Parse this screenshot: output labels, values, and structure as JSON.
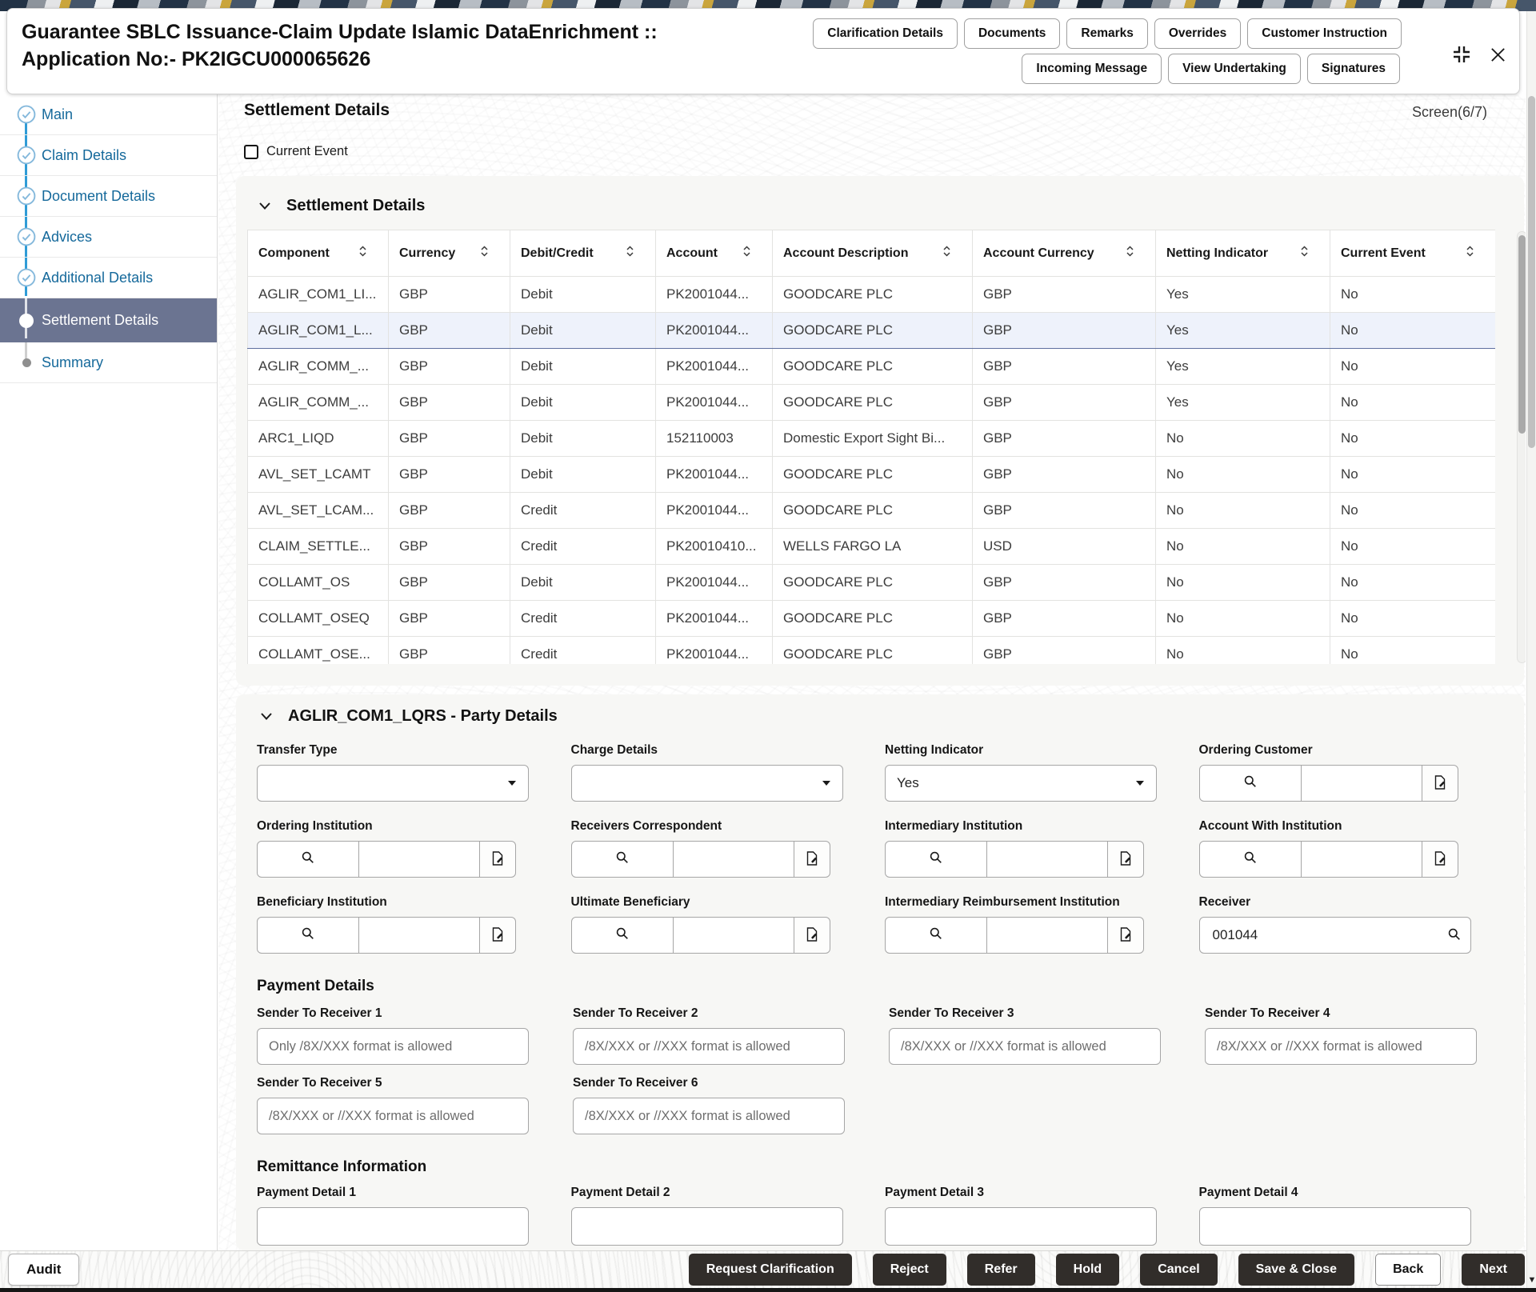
{
  "header": {
    "title_line1": "Guarantee SBLC Issuance-Claim Update Islamic DataEnrichment ::",
    "title_line2": "Application No:- PK2IGCU000065626",
    "buttons_row1": [
      "Clarification Details",
      "Documents",
      "Remarks",
      "Overrides",
      "Customer Instruction"
    ],
    "buttons_row2": [
      "Incoming Message",
      "View Undertaking",
      "Signatures"
    ]
  },
  "sidebar": {
    "items": [
      {
        "label": "Main",
        "state": "done"
      },
      {
        "label": "Claim Details",
        "state": "done"
      },
      {
        "label": "Document Details",
        "state": "done"
      },
      {
        "label": "Advices",
        "state": "done"
      },
      {
        "label": "Additional Details",
        "state": "done"
      },
      {
        "label": "Settlement Details",
        "state": "active"
      },
      {
        "label": "Summary",
        "state": "todo"
      }
    ]
  },
  "page": {
    "title": "Settlement Details",
    "screen_indicator": "Screen(6/7)",
    "current_event_label": "Current Event"
  },
  "settlement_table": {
    "section_title": "Settlement Details",
    "columns": [
      "Component",
      "Currency",
      "Debit/Credit",
      "Account",
      "Account Description",
      "Account Currency",
      "Netting Indicator",
      "Current Event"
    ],
    "rows": [
      {
        "selected": false,
        "cells": [
          "AGLIR_COM1_LI...",
          "GBP",
          "Debit",
          "PK2001044...",
          "GOODCARE PLC",
          "GBP",
          "Yes",
          "No"
        ]
      },
      {
        "selected": true,
        "cells": [
          "AGLIR_COM1_L...",
          "GBP",
          "Debit",
          "PK2001044...",
          "GOODCARE PLC",
          "GBP",
          "Yes",
          "No"
        ]
      },
      {
        "selected": false,
        "cells": [
          "AGLIR_COMM_...",
          "GBP",
          "Debit",
          "PK2001044...",
          "GOODCARE PLC",
          "GBP",
          "Yes",
          "No"
        ]
      },
      {
        "selected": false,
        "cells": [
          "AGLIR_COMM_...",
          "GBP",
          "Debit",
          "PK2001044...",
          "GOODCARE PLC",
          "GBP",
          "Yes",
          "No"
        ]
      },
      {
        "selected": false,
        "cells": [
          "ARC1_LIQD",
          "GBP",
          "Debit",
          "152110003",
          "Domestic Export Sight Bi...",
          "GBP",
          "No",
          "No"
        ]
      },
      {
        "selected": false,
        "cells": [
          "AVL_SET_LCAMT",
          "GBP",
          "Debit",
          "PK2001044...",
          "GOODCARE PLC",
          "GBP",
          "No",
          "No"
        ]
      },
      {
        "selected": false,
        "cells": [
          "AVL_SET_LCAM...",
          "GBP",
          "Credit",
          "PK2001044...",
          "GOODCARE PLC",
          "GBP",
          "No",
          "No"
        ]
      },
      {
        "selected": false,
        "cells": [
          "CLAIM_SETTLE...",
          "GBP",
          "Credit",
          "PK20010410...",
          "WELLS FARGO LA",
          "USD",
          "No",
          "No"
        ]
      },
      {
        "selected": false,
        "cells": [
          "COLLAMT_OS",
          "GBP",
          "Debit",
          "PK2001044...",
          "GOODCARE PLC",
          "GBP",
          "No",
          "No"
        ]
      },
      {
        "selected": false,
        "cells": [
          "COLLAMT_OSEQ",
          "GBP",
          "Credit",
          "PK2001044...",
          "GOODCARE PLC",
          "GBP",
          "No",
          "No"
        ]
      },
      {
        "selected": false,
        "cells": [
          "COLLAMT_OSE...",
          "GBP",
          "Credit",
          "PK2001044...",
          "GOODCARE PLC",
          "GBP",
          "No",
          "No"
        ]
      }
    ]
  },
  "party_details": {
    "section_title": "AGLIR_COM1_LQRS - Party Details",
    "rows": [
      [
        {
          "label": "Transfer Type",
          "type": "select",
          "value": "",
          "name": "transfer-type"
        },
        {
          "label": "Charge Details",
          "type": "select",
          "value": "",
          "name": "charge-details"
        },
        {
          "label": "Netting Indicator",
          "type": "select",
          "value": "Yes",
          "name": "netting-indicator"
        },
        {
          "label": "Ordering Customer",
          "type": "lookup",
          "search_value": "",
          "text_value": "",
          "name": "ordering-customer"
        }
      ],
      [
        {
          "label": "Ordering Institution",
          "type": "lookup",
          "search_value": "",
          "text_value": "",
          "name": "ordering-institution"
        },
        {
          "label": "Receivers Correspondent",
          "type": "lookup",
          "search_value": "",
          "text_value": "",
          "name": "receivers-correspondent"
        },
        {
          "label": "Intermediary Institution",
          "type": "lookup",
          "search_value": "",
          "text_value": "",
          "name": "intermediary-institution"
        },
        {
          "label": "Account With Institution",
          "type": "lookup",
          "search_value": "",
          "text_value": "",
          "name": "account-with-institution"
        }
      ],
      [
        {
          "label": "Beneficiary Institution",
          "type": "lookup",
          "search_value": "",
          "text_value": "",
          "name": "beneficiary-institution"
        },
        {
          "label": "Ultimate Beneficiary",
          "type": "lookup",
          "search_value": "",
          "text_value": "",
          "name": "ultimate-beneficiary"
        },
        {
          "label": "Intermediary Reimbursement Institution",
          "type": "lookup",
          "search_value": "",
          "text_value": "",
          "name": "intermediary-reimbursement-institution"
        },
        {
          "label": "Receiver",
          "type": "search",
          "value": "001044",
          "name": "receiver"
        }
      ]
    ]
  },
  "payment_details": {
    "heading": "Payment Details",
    "fields": [
      {
        "label": "Sender To Receiver 1",
        "value": "",
        "placeholder": "Only /8X/XXX format is allowed",
        "name": "sender-to-receiver-1"
      },
      {
        "label": "Sender To Receiver 2",
        "value": "",
        "placeholder": "/8X/XXX or //XXX format is allowed",
        "name": "sender-to-receiver-2"
      },
      {
        "label": "Sender To Receiver 3",
        "value": "",
        "placeholder": "/8X/XXX or //XXX format is allowed",
        "name": "sender-to-receiver-3"
      },
      {
        "label": "Sender To Receiver 4",
        "value": "",
        "placeholder": "/8X/XXX or //XXX format is allowed",
        "name": "sender-to-receiver-4"
      },
      {
        "label": "Sender To Receiver 5",
        "value": "",
        "placeholder": "/8X/XXX or //XXX format is allowed",
        "name": "sender-to-receiver-5"
      },
      {
        "label": "Sender To Receiver 6",
        "value": "",
        "placeholder": "/8X/XXX or //XXX format is allowed",
        "name": "sender-to-receiver-6"
      }
    ]
  },
  "remittance_information": {
    "heading": "Remittance Information",
    "fields": [
      {
        "label": "Payment Detail 1",
        "value": "",
        "name": "payment-detail-1"
      },
      {
        "label": "Payment Detail 2",
        "value": "",
        "name": "payment-detail-2"
      },
      {
        "label": "Payment Detail 3",
        "value": "",
        "name": "payment-detail-3"
      },
      {
        "label": "Payment Detail 4",
        "value": "",
        "name": "payment-detail-4"
      }
    ]
  },
  "footer": {
    "audit_label": "Audit",
    "actions": [
      {
        "label": "Request Clarification",
        "style": "dark"
      },
      {
        "label": "Reject",
        "style": "dark"
      },
      {
        "label": "Refer",
        "style": "dark"
      },
      {
        "label": "Hold",
        "style": "dark"
      },
      {
        "label": "Cancel",
        "style": "dark"
      },
      {
        "label": "Save & Close",
        "style": "dark"
      },
      {
        "label": "Back",
        "style": "light"
      },
      {
        "label": "Next",
        "style": "dark"
      }
    ]
  },
  "icons": {
    "search": "magnifier-glass",
    "document_edit": "page-with-pencil",
    "select_caret": "filled-down-triangle",
    "section_chevron": "chevron-down",
    "sort": "up-down-chevrons",
    "step_done": "circle-with-check",
    "step_active": "filled-white-circle",
    "step_todo": "gray-dot",
    "window_collapse": "inward-corner-brackets",
    "window_close": "x-mark",
    "checkbox": "empty-square"
  },
  "colors": {
    "sidebar_link": "#15699b",
    "sidebar_active_bg": "#6b7491",
    "step_icon_blue": "#85b9dc",
    "connector_blue": "#2f9cd6",
    "selected_row_bg": "#eef2fb",
    "selected_row_border": "#5e6f9e",
    "dark_button_bg": "#312d2a",
    "card_bg": "#f7f7f5"
  }
}
